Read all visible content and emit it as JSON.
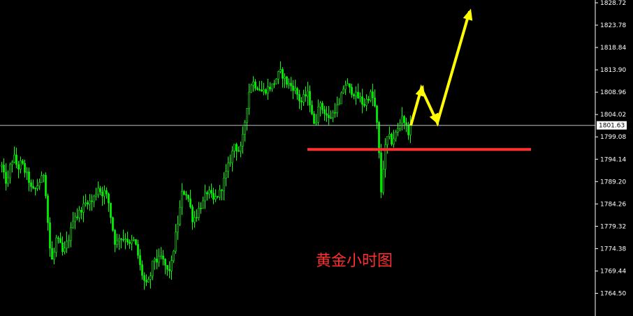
{
  "chart_data": {
    "type": "candlestick",
    "title": "",
    "xlabel": "",
    "ylabel": "",
    "ylim": [
      1760.3,
      1829.2
    ],
    "y_ticks": [
      "1828.72",
      "1823.78",
      "1818.84",
      "1813.90",
      "1808.96",
      "1804.02",
      "1799.08",
      "1794.14",
      "1789.20",
      "1784.26",
      "1779.32",
      "1774.38",
      "1769.44",
      "1764.50"
    ],
    "current_price": 1801.63,
    "current_price_label": "1801.63",
    "support_level": 1796.3,
    "annotation_text": "黄金小时图",
    "price_path": [
      [
        0,
        1794.0
      ],
      [
        5,
        1790.5
      ],
      [
        10,
        1788.5
      ],
      [
        15,
        1793.5
      ],
      [
        20,
        1794.5
      ],
      [
        25,
        1792.0
      ],
      [
        30,
        1793.5
      ],
      [
        35,
        1791.5
      ],
      [
        40,
        1790.0
      ],
      [
        45,
        1787.0
      ],
      [
        50,
        1787.5
      ],
      [
        55,
        1789.0
      ],
      [
        60,
        1790.0
      ],
      [
        63,
        1791.5
      ],
      [
        66,
        1784.5
      ],
      [
        70,
        1776.0
      ],
      [
        73,
        1771.5
      ],
      [
        76,
        1772.5
      ],
      [
        80,
        1776.5
      ],
      [
        85,
        1775.5
      ],
      [
        90,
        1773.0
      ],
      [
        95,
        1775.5
      ],
      [
        100,
        1777.5
      ],
      [
        105,
        1782.0
      ],
      [
        110,
        1781.5
      ],
      [
        115,
        1783.0
      ],
      [
        120,
        1784.0
      ],
      [
        125,
        1785.0
      ],
      [
        130,
        1784.5
      ],
      [
        135,
        1786.0
      ],
      [
        140,
        1788.0
      ],
      [
        145,
        1786.5
      ],
      [
        150,
        1787.0
      ],
      [
        155,
        1784.5
      ],
      [
        160,
        1779.5
      ],
      [
        165,
        1775.0
      ],
      [
        170,
        1777.0
      ],
      [
        175,
        1776.5
      ],
      [
        180,
        1777.0
      ],
      [
        185,
        1775.0
      ],
      [
        190,
        1776.5
      ],
      [
        195,
        1774.5
      ],
      [
        200,
        1770.5
      ],
      [
        205,
        1767.5
      ],
      [
        210,
        1766.0
      ],
      [
        215,
        1768.5
      ],
      [
        220,
        1772.5
      ],
      [
        225,
        1771.5
      ],
      [
        230,
        1772.5
      ],
      [
        235,
        1771.0
      ],
      [
        240,
        1769.0
      ],
      [
        245,
        1771.0
      ],
      [
        250,
        1776.5
      ],
      [
        255,
        1781.0
      ],
      [
        260,
        1786.5
      ],
      [
        265,
        1787.0
      ],
      [
        270,
        1785.0
      ],
      [
        275,
        1781.0
      ],
      [
        280,
        1781.5
      ],
      [
        285,
        1783.5
      ],
      [
        290,
        1784.5
      ],
      [
        295,
        1787.0
      ],
      [
        300,
        1786.5
      ],
      [
        305,
        1785.0
      ],
      [
        310,
        1786.0
      ],
      [
        315,
        1787.0
      ],
      [
        320,
        1789.5
      ],
      [
        325,
        1792.0
      ],
      [
        330,
        1794.5
      ],
      [
        335,
        1797.5
      ],
      [
        340,
        1796.0
      ],
      [
        345,
        1796.5
      ],
      [
        350,
        1802.5
      ],
      [
        355,
        1808.5
      ],
      [
        360,
        1811.5
      ],
      [
        365,
        1810.5
      ],
      [
        370,
        1810.0
      ],
      [
        375,
        1809.0
      ],
      [
        380,
        1809.5
      ],
      [
        385,
        1810.0
      ],
      [
        390,
        1810.5
      ],
      [
        395,
        1812.0
      ],
      [
        400,
        1813.5
      ],
      [
        405,
        1812.5
      ],
      [
        410,
        1811.0
      ],
      [
        415,
        1810.5
      ],
      [
        420,
        1810.0
      ],
      [
        425,
        1808.5
      ],
      [
        430,
        1806.5
      ],
      [
        435,
        1808.0
      ],
      [
        440,
        1808.5
      ],
      [
        445,
        1805.5
      ],
      [
        450,
        1800.5
      ],
      [
        455,
        1806.5
      ],
      [
        460,
        1805.5
      ],
      [
        465,
        1804.5
      ],
      [
        470,
        1803.0
      ],
      [
        475,
        1804.0
      ],
      [
        480,
        1805.5
      ],
      [
        485,
        1806.0
      ],
      [
        490,
        1809.5
      ],
      [
        495,
        1811.0
      ],
      [
        500,
        1809.5
      ],
      [
        505,
        1809.0
      ],
      [
        510,
        1808.0
      ],
      [
        515,
        1807.5
      ],
      [
        520,
        1806.0
      ],
      [
        525,
        1807.5
      ],
      [
        530,
        1808.5
      ],
      [
        535,
        1807.0
      ],
      [
        540,
        1800.5
      ],
      [
        545,
        1787.0
      ],
      [
        550,
        1796.0
      ],
      [
        555,
        1799.5
      ],
      [
        560,
        1798.0
      ],
      [
        565,
        1799.5
      ],
      [
        570,
        1801.0
      ],
      [
        575,
        1804.0
      ],
      [
        580,
        1801.5
      ],
      [
        585,
        1800.0
      ],
      [
        588,
        1801.6
      ]
    ],
    "forecast_path": [
      [
        588,
        1801.6
      ],
      [
        603,
        1809.8
      ],
      [
        626,
        1802.2
      ],
      [
        672,
        1826.8
      ]
    ],
    "colors": {
      "background": "#000000",
      "candles": "#00ff00",
      "current_price_line": "#c0c0c0",
      "support_line": "#ff3030",
      "forecast_arrow": "#ffff00",
      "annotation_text": "#ff3030",
      "axis_text": "#ffffff"
    }
  }
}
